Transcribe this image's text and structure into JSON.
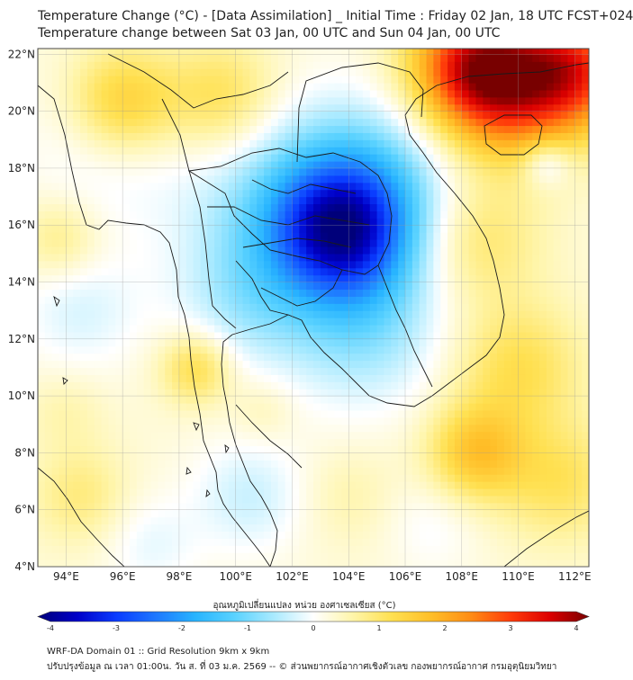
{
  "header": {
    "title_line1": "Temperature Change (°C) - [Data Assimilation] _ Initial Time : Friday 02 Jan, 18 UTC FCST+024",
    "title_line2": "Temperature change between Sat 03 Jan, 00 UTC and Sun 04 Jan, 00 UTC"
  },
  "map": {
    "lat_labels": [
      "22°N",
      "20°N",
      "18°N",
      "16°N",
      "14°N",
      "12°N",
      "10°N",
      "8°N",
      "6°N",
      "4°N"
    ],
    "lon_labels": [
      "94°E",
      "96°E",
      "98°E",
      "100°E",
      "102°E",
      "104°E",
      "106°E",
      "108°E",
      "110°E",
      "112°E"
    ],
    "extent": {
      "lon_min": 93,
      "lon_max": 112.5,
      "lat_min": 4,
      "lat_max": 22.2
    },
    "anomalies": [
      {
        "lon": 103.7,
        "lat": 15.8,
        "value": -2.4,
        "spread": 1.6
      },
      {
        "lon": 104.5,
        "lat": 17.0,
        "value": -1.5,
        "spread": 2.2
      },
      {
        "lon": 101.5,
        "lat": 16.0,
        "value": -0.9,
        "spread": 2.4
      },
      {
        "lon": 104.5,
        "lat": 12.5,
        "value": -0.9,
        "spread": 2.0
      },
      {
        "lon": 100.2,
        "lat": 13.2,
        "value": -0.5,
        "spread": 1.6
      },
      {
        "lon": 100.5,
        "lat": 6.5,
        "value": -0.6,
        "spread": 1.4
      },
      {
        "lon": 95.5,
        "lat": 19.0,
        "value": -0.5,
        "spread": 2.0
      },
      {
        "lon": 94.5,
        "lat": 13.0,
        "value": -0.5,
        "spread": 1.5
      },
      {
        "lon": 97.0,
        "lat": 4.8,
        "value": -0.4,
        "spread": 1.2
      },
      {
        "lon": 111.0,
        "lat": 18.2,
        "value": -0.8,
        "spread": 0.6
      },
      {
        "lon": 107.0,
        "lat": 5.5,
        "value": -0.3,
        "spread": 1.2
      },
      {
        "lon": 108.5,
        "lat": 21.6,
        "value": 3.0,
        "spread": 1.6
      },
      {
        "lon": 112.0,
        "lat": 21.5,
        "value": 2.4,
        "spread": 1.5
      },
      {
        "lon": 110.0,
        "lat": 20.4,
        "value": 1.4,
        "spread": 1.7
      },
      {
        "lon": 96.0,
        "lat": 20.3,
        "value": 1.4,
        "spread": 1.4
      },
      {
        "lon": 99.5,
        "lat": 20.5,
        "value": 0.9,
        "spread": 1.4
      },
      {
        "lon": 108.5,
        "lat": 15.5,
        "value": 0.8,
        "spread": 1.6
      },
      {
        "lon": 110.0,
        "lat": 11.0,
        "value": 0.9,
        "spread": 1.6
      },
      {
        "lon": 108.5,
        "lat": 8.0,
        "value": 1.3,
        "spread": 1.2
      },
      {
        "lon": 111.5,
        "lat": 7.0,
        "value": 0.8,
        "spread": 1.5
      },
      {
        "lon": 98.6,
        "lat": 11.0,
        "value": 1.0,
        "spread": 0.9
      },
      {
        "lon": 93.8,
        "lat": 15.5,
        "value": 0.6,
        "spread": 1.0
      },
      {
        "lon": 94.5,
        "lat": 6.5,
        "value": 0.6,
        "spread": 1.2
      },
      {
        "lon": 94.0,
        "lat": 9.5,
        "value": 0.3,
        "spread": 1.0
      },
      {
        "lon": 104.0,
        "lat": 6.5,
        "value": 0.3,
        "spread": 1.2
      },
      {
        "lon": 101.0,
        "lat": 9.5,
        "value": 0.3,
        "spread": 0.8
      }
    ]
  },
  "colorbar": {
    "title": "อุณหภูมิเปลี่ยนแปลง หน่วย องศาเซลเซียส (°C)",
    "min": -4,
    "max": 4,
    "ticks": [
      "-4",
      "-3",
      "-2",
      "-1",
      "0",
      "1",
      "2",
      "3",
      "4"
    ],
    "colors": [
      "#00007a",
      "#0000c8",
      "#0a3cff",
      "#1e78ff",
      "#28b4ff",
      "#5ad2ff",
      "#aaeaff",
      "#ffffff",
      "#fff5aa",
      "#ffe050",
      "#ffbe28",
      "#ff8c14",
      "#ff3c0a",
      "#dc0000",
      "#780000"
    ]
  },
  "footer": {
    "line1": "WRF-DA Domain 01 :: Grid Resolution 9km x 9km",
    "line2": "ปรับปรุงข้อมูล ณ เวลา 01:00น. วัน ส. ที่ 03 ม.ค. 2569 -- © ส่วนพยากรณ์อากาศเชิงตัวเลข กองพยากรณ์อากาศ กรมอุตุนิยมวิทยา"
  }
}
